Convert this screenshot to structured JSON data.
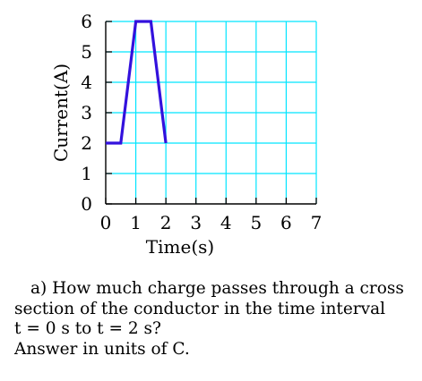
{
  "chart_data": {
    "type": "line",
    "xlabel": "Time(s)",
    "ylabel": "Current(A)",
    "xlim": [
      0,
      7
    ],
    "ylim": [
      0,
      6
    ],
    "x_ticks": [
      "0",
      "1",
      "2",
      "3",
      "4",
      "5",
      "6",
      "7"
    ],
    "y_ticks": [
      "0",
      "1",
      "2",
      "3",
      "4",
      "5",
      "6"
    ],
    "grid": true,
    "grid_color": "#00e5ff",
    "line_color": "#3311dd",
    "series": [
      {
        "x": [
          0,
          0.5,
          1,
          1.5,
          2
        ],
        "y": [
          2,
          2,
          6,
          6,
          2
        ]
      }
    ]
  },
  "question": {
    "line1": "a) How much charge passes through a cross",
    "line2": "section of the conductor in the time interval",
    "line3": "t = 0 s to t = 2 s?",
    "line4": "Answer in units of  C."
  }
}
